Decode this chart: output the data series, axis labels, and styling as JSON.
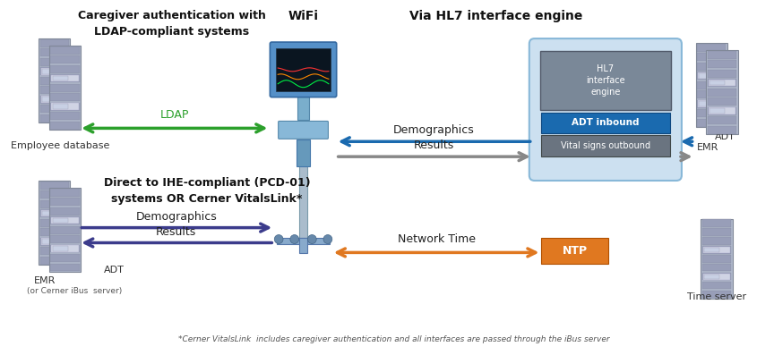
{
  "bg_color": "#ffffff",
  "fig_width": 8.64,
  "fig_height": 3.97,
  "top_left_title": "Caregiver authentication with\nLDAP-compliant systems",
  "top_left_sublabel": "Employee database",
  "ldap_label": "LDAP",
  "wifi_label": "WiFi",
  "hl7_label": "Via HL7 interface engine",
  "hl7_box_color": "#cce0f0",
  "hl7_engine_label": "HL7\ninterface\nengine",
  "hl7_chip_color": "#7a8898",
  "adt_inbound_color": "#1a6aaf",
  "adt_inbound_label": "ADT inbound",
  "vital_outbound_color": "#6a7480",
  "vital_outbound_label": "Vital signs outbound",
  "demographics_label_top": "Demographics",
  "results_label_top": "Results",
  "bottom_left_title": "Direct to IHE-compliant (PCD-01)\nsystems OR Cerner VitalsLink*",
  "demographics_label_bot": "Demographics",
  "results_label_bot": "Results",
  "bottom_left_emr": "EMR",
  "bottom_left_adt": "ADT",
  "bottom_left_sub": "(or Cerner iBus  server)",
  "right_emr": "EMR",
  "right_adt": "ADT",
  "time_server": "Time server",
  "network_time_label": "Network Time",
  "ntp_label": "NTP",
  "ntp_color": "#e07820",
  "green_arrow_color": "#2ca02c",
  "blue_arrow_color": "#1a6aaf",
  "gray_arrow_color": "#888888",
  "orange_arrow_color": "#e07820",
  "purple_arrow_color": "#3c3c8c",
  "server_face": "#b0b8cc",
  "server_edge": "#808898",
  "server_slot": "#989eb8",
  "server_highlight": "#d0d4e4",
  "footnote": "*Cerner VitalsLink  includes caregiver authentication and all interfaces are passed through the iBus server"
}
